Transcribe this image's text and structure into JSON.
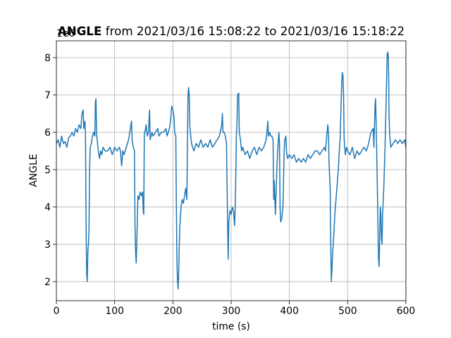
{
  "chart_data": {
    "type": "line",
    "title_bold": "ANGLE",
    "title_rest": " from 2021/03/16 15:08:22 to 2021/03/16 15:18:22",
    "xlabel": "time (s)",
    "ylabel": "ANGLE",
    "offset_text": "1e6",
    "color": "#1f77b4",
    "grid": true,
    "xlim": [
      0,
      600
    ],
    "xticks": [
      0,
      100,
      200,
      300,
      400,
      500,
      600
    ],
    "ylim": [
      1.49,
      8.45
    ],
    "yticks": [
      2,
      3,
      4,
      5,
      6,
      7,
      8
    ],
    "x": [
      0,
      3,
      6,
      9,
      12,
      15,
      18,
      21,
      24,
      27,
      30,
      33,
      36,
      39,
      42,
      44,
      46,
      47,
      49,
      50,
      51,
      52,
      53,
      54,
      55,
      56,
      57,
      58,
      60,
      62,
      64,
      66,
      67,
      68,
      69,
      70,
      72,
      74,
      76,
      78,
      80,
      84,
      88,
      92,
      96,
      100,
      104,
      108,
      110,
      112,
      114,
      116,
      120,
      124,
      126,
      128,
      129,
      130,
      132,
      134,
      135,
      136,
      137,
      138,
      140,
      142,
      144,
      146,
      148,
      149,
      150,
      151,
      152,
      154,
      156,
      158,
      160,
      161,
      164,
      166,
      170,
      174,
      176,
      180,
      184,
      188,
      190,
      194,
      196,
      198,
      200,
      202,
      203,
      205,
      206,
      207,
      208,
      209,
      210,
      211,
      212,
      214,
      216,
      218,
      220,
      222,
      224,
      225,
      226,
      227,
      228,
      229,
      230,
      232,
      236,
      240,
      244,
      248,
      252,
      256,
      260,
      264,
      268,
      272,
      276,
      280,
      284,
      285,
      286,
      288,
      290,
      292,
      294,
      295,
      296,
      298,
      300,
      302,
      304,
      306,
      307,
      308,
      309,
      310,
      311,
      313,
      314,
      316,
      318,
      320,
      324,
      328,
      332,
      336,
      340,
      344,
      348,
      352,
      356,
      358,
      360,
      362,
      363,
      364,
      366,
      368,
      370,
      372,
      373,
      374,
      376,
      378,
      379,
      381,
      382,
      383,
      384,
      385,
      387,
      389,
      391,
      392,
      394,
      395,
      397,
      400,
      404,
      408,
      412,
      416,
      420,
      424,
      428,
      432,
      436,
      440,
      444,
      448,
      452,
      456,
      460,
      462,
      464,
      466,
      467,
      468,
      470,
      471,
      472,
      473,
      474,
      476,
      478,
      480,
      482,
      484,
      486,
      487,
      488,
      490,
      491,
      492,
      493,
      494,
      496,
      498,
      500,
      504,
      508,
      512,
      516,
      520,
      524,
      528,
      532,
      536,
      540,
      544,
      545,
      547,
      548,
      549,
      551,
      553,
      554,
      555,
      556,
      557,
      558,
      559,
      560,
      562,
      564,
      566,
      567,
      568,
      569,
      570,
      571,
      572,
      574,
      578,
      582,
      586,
      590,
      594,
      598,
      600
    ],
    "values": [
      5.7,
      5.8,
      5.6,
      5.9,
      5.7,
      5.75,
      5.6,
      5.85,
      5.9,
      6.0,
      5.9,
      6.1,
      6.0,
      6.2,
      6.1,
      6.5,
      6.6,
      6.1,
      6.3,
      5.9,
      3.5,
      2.2,
      2.0,
      2.8,
      3.0,
      3.4,
      5.0,
      5.6,
      5.7,
      5.9,
      6.0,
      5.9,
      6.8,
      6.9,
      6.0,
      5.8,
      5.5,
      5.3,
      5.5,
      5.4,
      5.6,
      5.5,
      5.5,
      5.6,
      5.4,
      5.6,
      5.5,
      5.6,
      5.5,
      5.1,
      5.5,
      5.4,
      5.6,
      5.8,
      6.0,
      6.2,
      6.3,
      5.8,
      5.6,
      5.5,
      3.5,
      2.8,
      2.5,
      3.0,
      4.3,
      4.2,
      4.4,
      4.3,
      4.4,
      3.9,
      3.8,
      6.0,
      6.0,
      6.2,
      5.9,
      6.0,
      6.6,
      5.8,
      6.0,
      5.9,
      6.0,
      6.1,
      5.9,
      6.0,
      6.0,
      6.1,
      5.9,
      6.1,
      6.3,
      6.7,
      6.6,
      6.4,
      6.0,
      5.9,
      4.0,
      2.5,
      2.0,
      1.8,
      2.3,
      3.0,
      3.5,
      4.0,
      4.2,
      4.1,
      4.3,
      4.5,
      4.2,
      5.7,
      7.0,
      7.2,
      7.0,
      6.2,
      6.0,
      5.7,
      5.5,
      5.7,
      5.6,
      5.8,
      5.6,
      5.7,
      5.6,
      5.8,
      5.6,
      5.7,
      5.8,
      5.9,
      6.2,
      6.5,
      6.0,
      6.0,
      5.9,
      5.7,
      3.5,
      2.6,
      3.6,
      3.9,
      3.8,
      4.0,
      3.9,
      3.5,
      4.0,
      4.8,
      5.9,
      6.2,
      7.0,
      7.05,
      6.0,
      5.8,
      5.5,
      5.6,
      5.4,
      5.5,
      5.3,
      5.5,
      5.6,
      5.4,
      5.6,
      5.5,
      5.6,
      5.7,
      5.8,
      6.1,
      6.3,
      5.9,
      6.0,
      5.9,
      5.9,
      5.8,
      4.2,
      4.7,
      3.8,
      4.8,
      5.2,
      5.8,
      6.0,
      5.7,
      4.0,
      3.6,
      3.7,
      4.0,
      5.5,
      5.8,
      5.9,
      5.5,
      5.3,
      5.4,
      5.3,
      5.4,
      5.2,
      5.3,
      5.2,
      5.3,
      5.2,
      5.4,
      5.3,
      5.4,
      5.5,
      5.5,
      5.4,
      5.5,
      5.6,
      5.5,
      5.9,
      6.2,
      6.0,
      5.2,
      4.5,
      3.0,
      2.0,
      2.3,
      2.7,
      3.2,
      3.8,
      4.2,
      4.6,
      5.0,
      5.6,
      5.8,
      6.3,
      7.4,
      7.6,
      7.5,
      7.0,
      5.8,
      5.4,
      5.6,
      5.5,
      5.4,
      5.6,
      5.3,
      5.5,
      5.4,
      5.5,
      5.6,
      5.5,
      5.7,
      6.0,
      6.1,
      5.6,
      6.7,
      6.9,
      6.2,
      4.5,
      2.6,
      2.4,
      3.2,
      4.0,
      3.8,
      3.2,
      3.0,
      3.8,
      4.5,
      5.5,
      6.8,
      7.5,
      8.1,
      8.15,
      8.0,
      6.5,
      6.0,
      5.6,
      5.7,
      5.8,
      5.7,
      5.8,
      5.7,
      5.8,
      5.6
    ]
  }
}
